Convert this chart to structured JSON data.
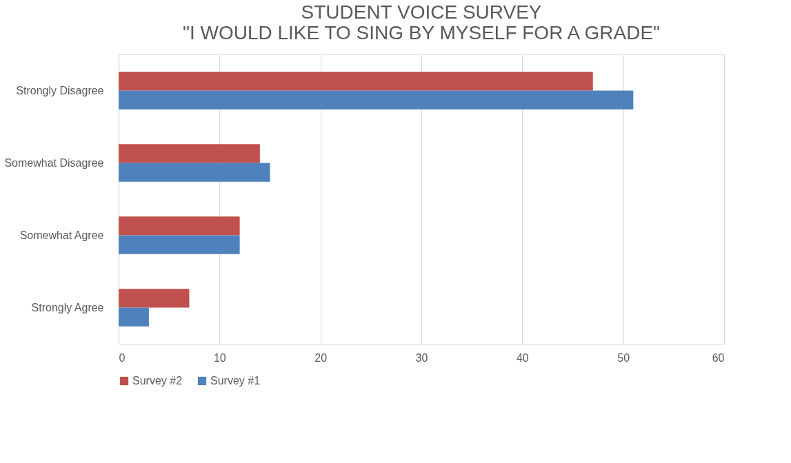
{
  "chart_data": {
    "type": "bar",
    "orientation": "horizontal",
    "title": [
      "STUDENT VOICE SURVEY",
      "\"I WOULD LIKE TO SING BY  MYSELF FOR A GRADE\""
    ],
    "categories": [
      "Strongly Disagree",
      "Somewhat Disagree",
      "Somewhat Agree",
      "Strongly Agree"
    ],
    "series": [
      {
        "name": "Survey #2",
        "color": "#c0504d",
        "values": [
          47,
          14,
          12,
          7
        ]
      },
      {
        "name": "Survey #1",
        "color": "#4f81bd",
        "values": [
          51,
          15,
          12,
          3
        ]
      }
    ],
    "xlim": [
      0,
      60
    ],
    "xticks": [
      0,
      10,
      20,
      30,
      40,
      50,
      60
    ],
    "grid": "x",
    "legend": "bottom"
  }
}
